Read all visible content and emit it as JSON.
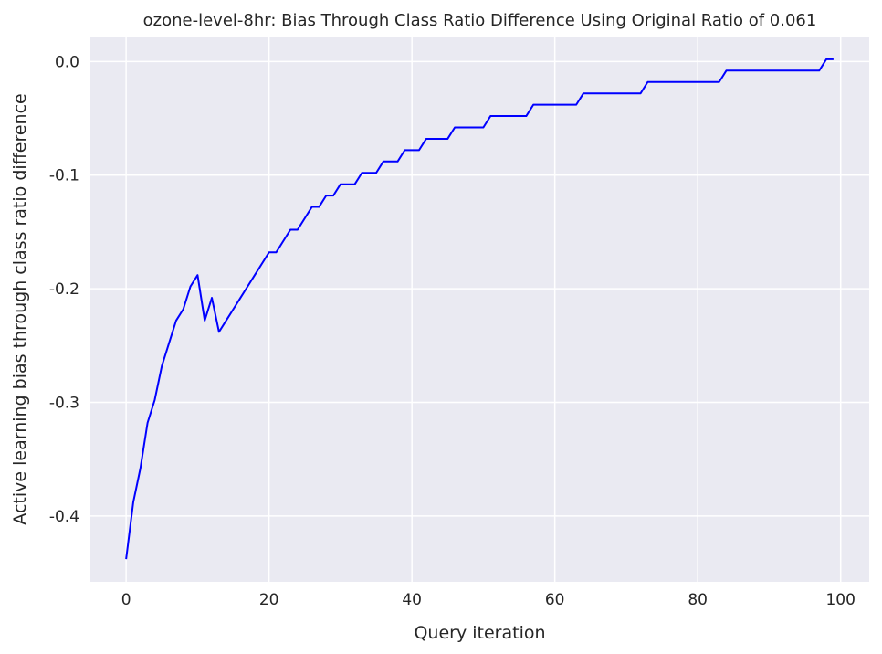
{
  "chart_data": {
    "type": "line",
    "title": "ozone-level-8hr: Bias Through Class Ratio Difference Using Original Ratio of 0.061",
    "xlabel": "Query iteration",
    "ylabel": "Active learning bias through class ratio difference",
    "xlim": [
      -5,
      104
    ],
    "ylim": [
      -0.458,
      0.022
    ],
    "xticks": [
      0,
      20,
      40,
      60,
      80,
      100
    ],
    "xtick_labels": [
      "0",
      "20",
      "40",
      "60",
      "80",
      "100"
    ],
    "yticks": [
      0.0,
      -0.1,
      -0.2,
      -0.3,
      -0.4
    ],
    "ytick_labels": [
      "0.0",
      "-0.1",
      "-0.2",
      "-0.3",
      "-0.4"
    ],
    "grid": true,
    "legend": "none",
    "colors": {
      "background": "#EAEAF2",
      "grid": "#FFFFFF",
      "line": "#0000FF"
    },
    "series": [
      {
        "x": [
          0,
          1,
          2,
          3,
          4,
          5,
          6,
          7,
          8,
          9,
          10,
          11,
          12,
          13,
          14,
          15,
          16,
          17,
          18,
          19,
          20,
          21,
          22,
          23,
          24,
          25,
          26,
          27,
          28,
          29,
          30,
          31,
          32,
          33,
          34,
          35,
          36,
          37,
          38,
          39,
          40,
          41,
          42,
          43,
          44,
          45,
          46,
          47,
          48,
          49,
          50,
          51,
          52,
          53,
          54,
          55,
          56,
          57,
          58,
          59,
          60,
          61,
          62,
          63,
          64,
          65,
          66,
          67,
          68,
          69,
          70,
          71,
          72,
          73,
          74,
          75,
          76,
          77,
          78,
          79,
          80,
          81,
          82,
          83,
          84,
          85,
          86,
          87,
          88,
          89,
          90,
          91,
          92,
          93,
          94,
          95,
          96,
          97,
          98,
          99
        ],
        "values": [
          -0.438,
          -0.388,
          -0.358,
          -0.318,
          -0.298,
          -0.268,
          -0.248,
          -0.228,
          -0.218,
          -0.198,
          -0.188,
          -0.228,
          -0.208,
          -0.238,
          -0.228,
          -0.218,
          -0.208,
          -0.198,
          -0.188,
          -0.178,
          -0.168,
          -0.168,
          -0.158,
          -0.148,
          -0.148,
          -0.138,
          -0.128,
          -0.128,
          -0.118,
          -0.118,
          -0.108,
          -0.108,
          -0.108,
          -0.098,
          -0.098,
          -0.098,
          -0.088,
          -0.088,
          -0.088,
          -0.078,
          -0.078,
          -0.078,
          -0.068,
          -0.068,
          -0.068,
          -0.068,
          -0.058,
          -0.058,
          -0.058,
          -0.058,
          -0.058,
          -0.048,
          -0.048,
          -0.048,
          -0.048,
          -0.048,
          -0.048,
          -0.038,
          -0.038,
          -0.038,
          -0.038,
          -0.038,
          -0.038,
          -0.038,
          -0.028,
          -0.028,
          -0.028,
          -0.028,
          -0.028,
          -0.028,
          -0.028,
          -0.028,
          -0.028,
          -0.018,
          -0.018,
          -0.018,
          -0.018,
          -0.018,
          -0.018,
          -0.018,
          -0.018,
          -0.018,
          -0.018,
          -0.018,
          -0.008,
          -0.008,
          -0.008,
          -0.008,
          -0.008,
          -0.008,
          -0.008,
          -0.008,
          -0.008,
          -0.008,
          -0.008,
          -0.008,
          -0.008,
          -0.008,
          0.002,
          0.002
        ]
      }
    ]
  }
}
